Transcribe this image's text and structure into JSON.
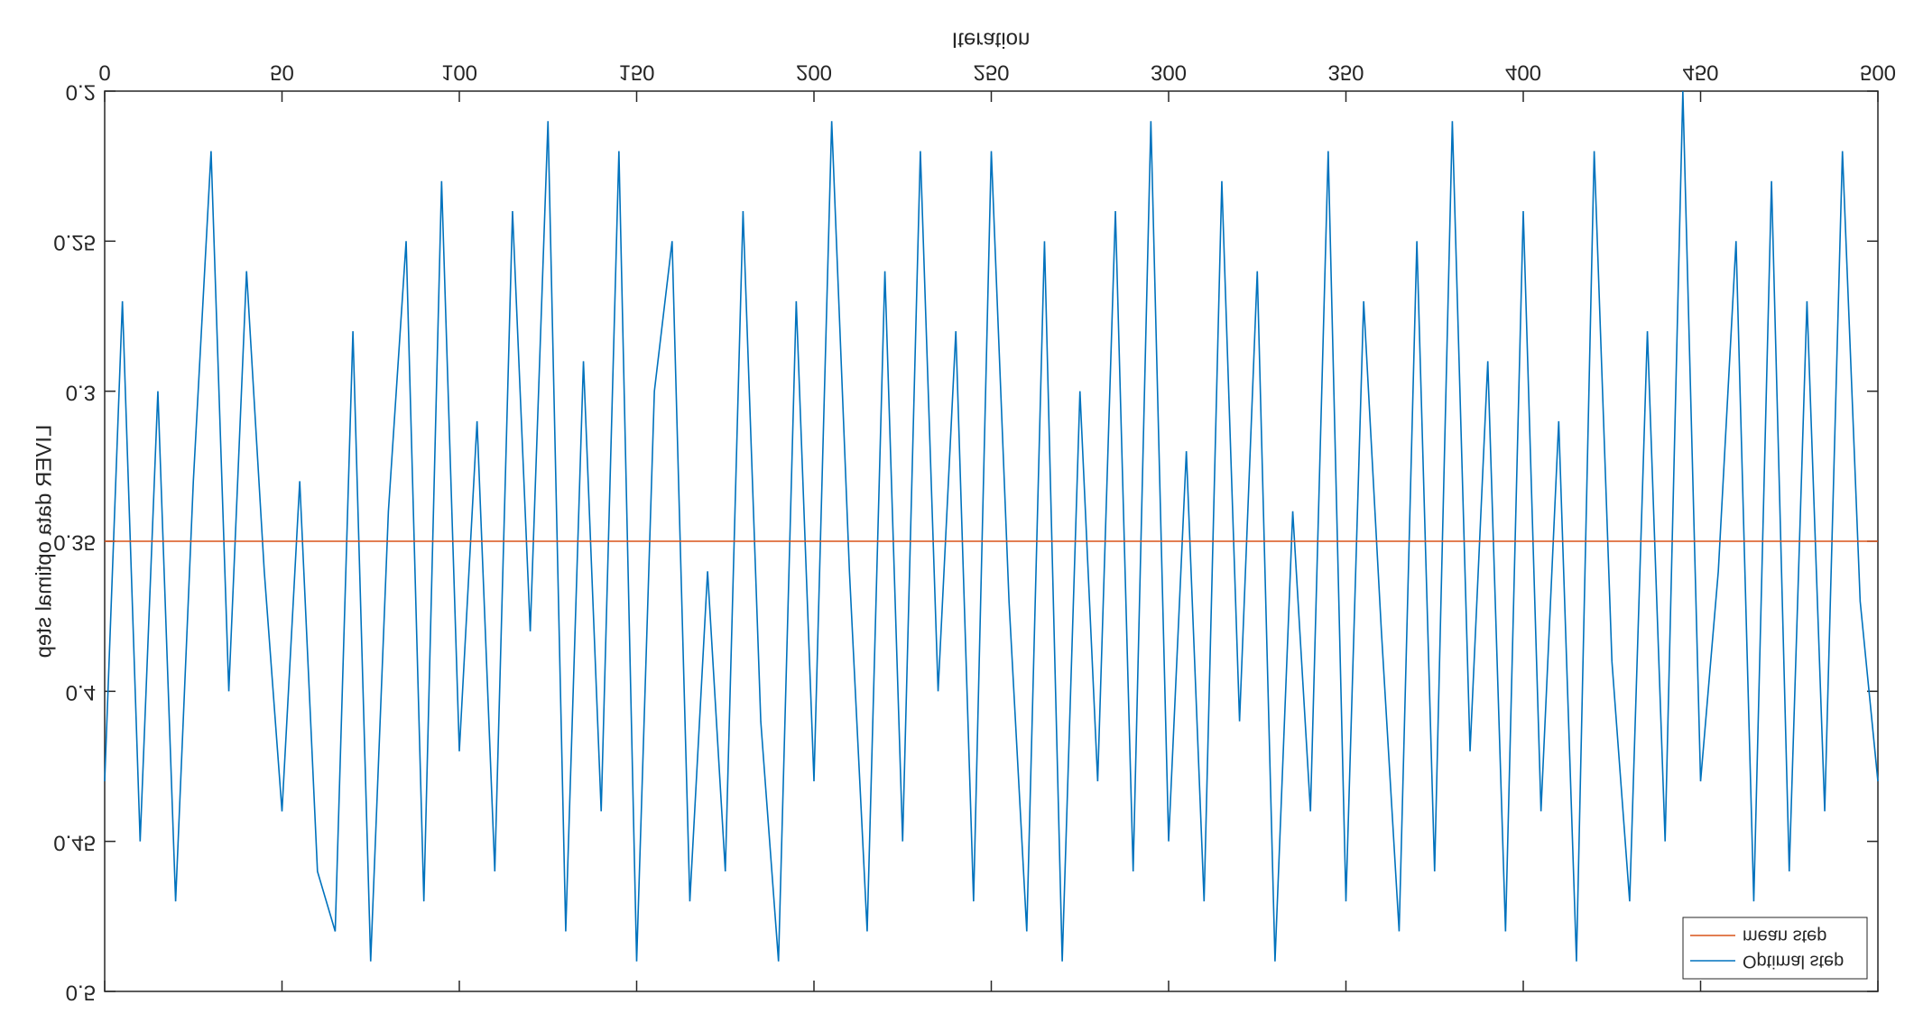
{
  "chart_data": {
    "type": "line",
    "xlabel": "Iteration",
    "ylabel": "LIVER data optimal step",
    "xlim": [
      0,
      500
    ],
    "ylim": [
      0.2,
      0.5
    ],
    "xticks": [
      0,
      50,
      100,
      150,
      200,
      250,
      300,
      350,
      400,
      450,
      500
    ],
    "yticks": [
      0.2,
      0.25,
      0.3,
      0.35,
      0.4,
      0.45,
      0.5
    ],
    "legend": "upper right",
    "series": [
      {
        "name": "Optimal step",
        "color": "#0072bd",
        "x": [
          0,
          5,
          10,
          15,
          20,
          25,
          30,
          35,
          40,
          45,
          50,
          55,
          60,
          65,
          70,
          75,
          80,
          85,
          90,
          95,
          100,
          105,
          110,
          115,
          120,
          125,
          130,
          135,
          140,
          145,
          150,
          155,
          160,
          165,
          170,
          175,
          180,
          185,
          190,
          195,
          200,
          205,
          210,
          215,
          220,
          225,
          230,
          235,
          240,
          245,
          250,
          255,
          260,
          265,
          270,
          275,
          280,
          285,
          290,
          295,
          300,
          305,
          310,
          315,
          320,
          325,
          330,
          335,
          340,
          345,
          350,
          355,
          360,
          365,
          370,
          375,
          380,
          385,
          390,
          395,
          400,
          405,
          410,
          415,
          420,
          425,
          430,
          435,
          440,
          445,
          450,
          455,
          460,
          465,
          470,
          475,
          480,
          485,
          490,
          495,
          500
        ],
        "values": [
          0.43,
          0.27,
          0.45,
          0.3,
          0.47,
          0.33,
          0.22,
          0.4,
          0.26,
          0.36,
          0.44,
          0.33,
          0.46,
          0.48,
          0.28,
          0.49,
          0.34,
          0.25,
          0.47,
          0.23,
          0.42,
          0.31,
          0.46,
          0.24,
          0.38,
          0.21,
          0.48,
          0.29,
          0.44,
          0.22,
          0.49,
          0.3,
          0.25,
          0.47,
          0.36,
          0.46,
          0.24,
          0.41,
          0.49,
          0.27,
          0.43,
          0.21,
          0.36,
          0.48,
          0.26,
          0.45,
          0.22,
          0.4,
          0.28,
          0.47,
          0.22,
          0.37,
          0.48,
          0.25,
          0.49,
          0.3,
          0.43,
          0.24,
          0.46,
          0.21,
          0.45,
          0.32,
          0.47,
          0.23,
          0.41,
          0.26,
          0.49,
          0.34,
          0.44,
          0.22,
          0.47,
          0.27,
          0.38,
          0.48,
          0.25,
          0.46,
          0.21,
          0.42,
          0.29,
          0.48,
          0.24,
          0.44,
          0.31,
          0.49,
          0.22,
          0.39,
          0.47,
          0.28,
          0.45,
          0.2,
          0.43,
          0.36,
          0.25,
          0.47,
          0.23,
          0.46,
          0.27,
          0.44,
          0.22,
          0.37,
          0.43
        ]
      },
      {
        "name": "mean step",
        "color": "#d95319",
        "x": [
          0,
          500
        ],
        "values": [
          0.35,
          0.35
        ]
      }
    ]
  }
}
